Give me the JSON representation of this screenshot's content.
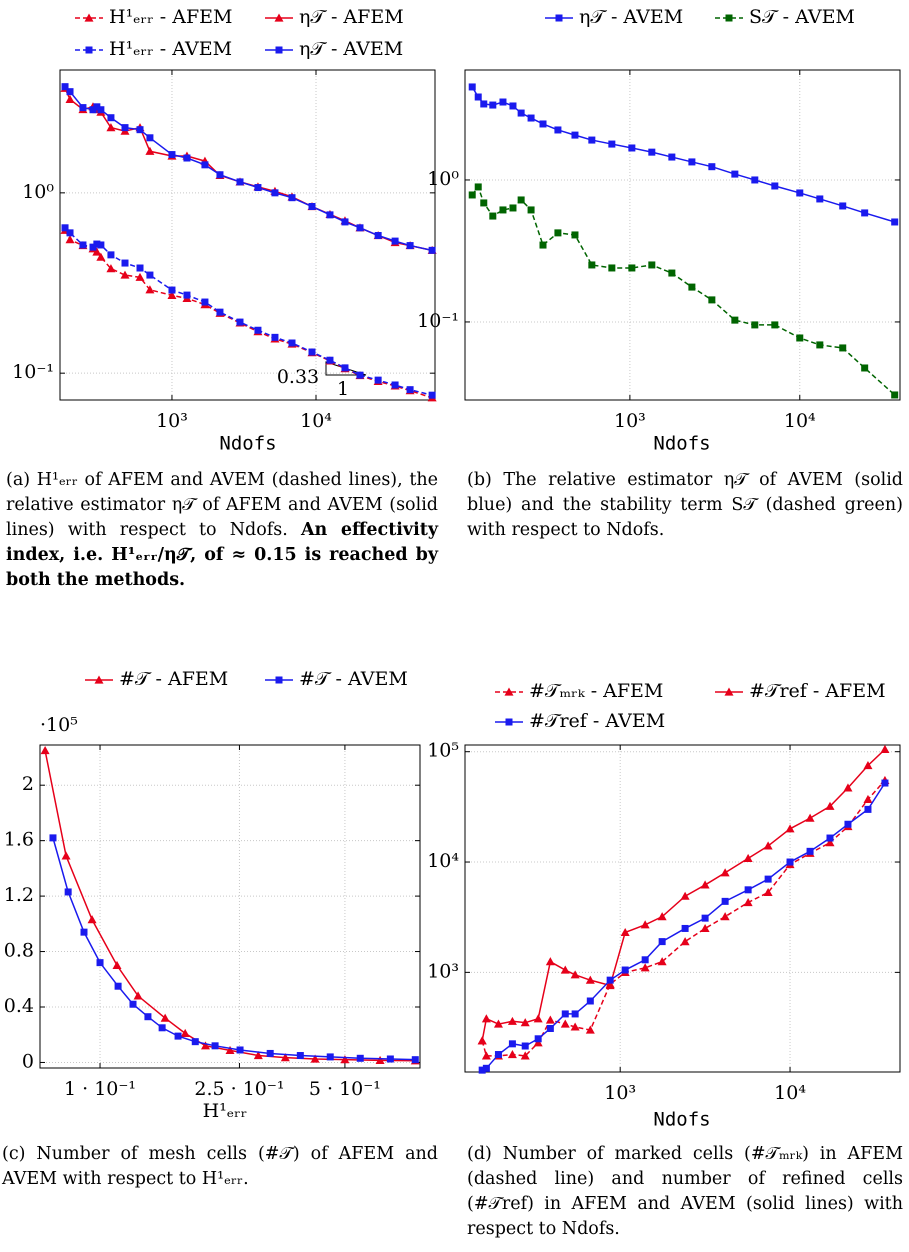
{
  "chart_data": [
    {
      "type": "line",
      "xlabel": "Ndofs",
      "xlog": true,
      "ylog": true,
      "grid": true,
      "xlim": [
        167,
        67000
      ],
      "ylim": [
        0.071,
        4.8
      ],
      "xticks": [
        {
          "value": 1000,
          "label": "10³"
        },
        {
          "value": 10000,
          "label": "10⁴"
        }
      ],
      "yticks": [
        {
          "value": 0.1,
          "label": "10⁻¹"
        },
        {
          "value": 1,
          "label": "10⁰"
        }
      ],
      "x": [
        181,
        196,
        241,
        283,
        301,
        321,
        377,
        472,
        600,
        703,
        1000,
        1271,
        1694,
        2154,
        2967,
        3953,
        5188,
        6813,
        9380,
        12500,
        15890,
        20200,
        27000,
        35400,
        45000,
        64000
      ],
      "series": [
        {
          "name": "H¹ₑᵣᵣ - AFEM",
          "color": "#e6001a",
          "marker": "triangle",
          "dashed": true,
          "values": [
            0.62,
            0.55,
            0.51,
            0.49,
            0.47,
            0.44,
            0.38,
            0.35,
            0.34,
            0.29,
            0.27,
            0.26,
            0.24,
            0.215,
            0.19,
            0.17,
            0.155,
            0.145,
            0.13,
            0.117,
            0.106,
            0.097,
            0.09,
            0.085,
            0.08,
            0.073
          ]
        },
        {
          "name": "η𝒯 - AFEM",
          "color": "#e6001a",
          "marker": "triangle",
          "dashed": false,
          "values": [
            3.8,
            3.3,
            2.9,
            3.0,
            2.9,
            2.8,
            2.3,
            2.2,
            2.3,
            1.7,
            1.6,
            1.6,
            1.5,
            1.25,
            1.15,
            1.08,
            1.02,
            0.95,
            0.84,
            0.76,
            0.7,
            0.64,
            0.58,
            0.53,
            0.51,
            0.48
          ]
        },
        {
          "name": "H¹ₑᵣᵣ - AVEM",
          "color": "#1a1aee",
          "marker": "square",
          "dashed": true,
          "values": [
            0.64,
            0.6,
            0.514,
            0.5,
            0.52,
            0.514,
            0.453,
            0.408,
            0.383,
            0.35,
            0.289,
            0.271,
            0.248,
            0.218,
            0.192,
            0.173,
            0.158,
            0.147,
            0.131,
            0.118,
            0.107,
            0.0975,
            0.0915,
            0.086,
            0.081,
            0.0755
          ]
        },
        {
          "name": "η𝒯 - AVEM",
          "color": "#1a1aee",
          "marker": "square",
          "dashed": false,
          "values": [
            3.88,
            3.64,
            2.97,
            2.89,
            3.0,
            2.89,
            2.61,
            2.3,
            2.24,
            2.02,
            1.63,
            1.56,
            1.43,
            1.26,
            1.15,
            1.07,
            1.0,
            0.94,
            0.84,
            0.755,
            0.69,
            0.64,
            0.58,
            0.54,
            0.51,
            0.48
          ]
        }
      ],
      "annotations": [
        "0.33",
        "1"
      ],
      "caption": "(a) H¹ₑᵣᵣ of AFEM and AVEM (dashed lines), the relative estimator η𝒯 of AFEM and AVEM (solid lines) with respect to Ndofs.",
      "caption_bold": "An effectivity index, i.e. H¹ₑᵣᵣ/η𝒯, of ≈ 0.15 is reached by both the methods."
    },
    {
      "type": "line",
      "xlabel": "Ndofs",
      "xlog": true,
      "ylog": true,
      "grid": true,
      "xlim": [
        107,
        38900
      ],
      "ylim": [
        0.0282,
        5.95
      ],
      "xticks": [
        {
          "value": 1000,
          "label": "10³"
        },
        {
          "value": 10000,
          "label": "10⁴"
        }
      ],
      "yticks": [
        {
          "value": 0.1,
          "label": "10⁻¹"
        },
        {
          "value": 1,
          "label": "10⁰"
        }
      ],
      "x": [
        118,
        128,
        138,
        156,
        179,
        205,
        229,
        262,
        308,
        377,
        475,
        597,
        783,
        1027,
        1346,
        1766,
        2317,
        3037,
        4148,
        5436,
        7130,
        10000,
        13120,
        17900,
        24100,
        36200
      ],
      "series": [
        {
          "name": "η𝒯 - AVEM",
          "color": "#1a1aee",
          "marker": "square",
          "dashed": false,
          "values": [
            4.52,
            3.84,
            3.43,
            3.37,
            3.54,
            3.32,
            2.96,
            2.73,
            2.48,
            2.25,
            2.07,
            1.91,
            1.79,
            1.68,
            1.57,
            1.45,
            1.34,
            1.24,
            1.1,
            1.0,
            0.907,
            0.81,
            0.735,
            0.656,
            0.586,
            0.506
          ]
        },
        {
          "name": "S𝒯 - AVEM",
          "color": "#006400",
          "marker": "square",
          "dashed": true,
          "values": [
            0.784,
            0.893,
            0.689,
            0.557,
            0.615,
            0.635,
            0.723,
            0.615,
            0.348,
            0.424,
            0.41,
            0.252,
            0.24,
            0.24,
            0.252,
            0.221,
            0.176,
            0.143,
            0.103,
            0.0953,
            0.0953,
            0.0771,
            0.0689,
            0.0656,
            0.0474,
            0.0306
          ]
        }
      ],
      "caption": "(b) The relative estimator η𝒯 of AVEM (solid blue) and the stability term S𝒯 (dashed green) with respect to Ndofs."
    },
    {
      "type": "line",
      "xlabel": "H¹ₑᵣᵣ",
      "xlog": true,
      "ylog": false,
      "grid": true,
      "y_multiplier": "·10⁵",
      "xlim": [
        0.0674,
        0.819
      ],
      "ylim": [
        -0.04,
        2.29
      ],
      "xticks": [
        {
          "value": 0.1,
          "label": "1 · 10⁻¹"
        },
        {
          "value": 0.25,
          "label": "2.5 · 10⁻¹"
        },
        {
          "value": 0.5,
          "label": "5 · 10⁻¹"
        }
      ],
      "yticks": [
        0,
        0.4,
        0.8,
        1.2,
        1.6,
        2
      ],
      "series": [
        {
          "name": "#𝒯 - AFEM",
          "color": "#e6001a",
          "marker": "triangle",
          "dashed": false,
          "x": [
            0.0697,
            0.08,
            0.0949,
            0.1118,
            0.1284,
            0.1534,
            0.175,
            0.2,
            0.235,
            0.283,
            0.338,
            0.411,
            0.5,
            0.63,
            0.794
          ],
          "values": [
            2.25,
            1.49,
            1.03,
            0.7,
            0.48,
            0.32,
            0.21,
            0.12,
            0.087,
            0.05,
            0.035,
            0.025,
            0.02,
            0.015,
            0.012
          ]
        },
        {
          "name": "#𝒯 - AVEM",
          "color": "#1a1aee",
          "marker": "square",
          "dashed": false,
          "x": [
            0.0734,
            0.0811,
            0.09,
            0.1,
            0.1126,
            0.1242,
            0.137,
            0.1504,
            0.167,
            0.187,
            0.213,
            0.251,
            0.306,
            0.373,
            0.454,
            0.553,
            0.674,
            0.794
          ],
          "values": [
            1.62,
            1.23,
            0.94,
            0.72,
            0.55,
            0.42,
            0.33,
            0.25,
            0.19,
            0.15,
            0.12,
            0.09,
            0.065,
            0.05,
            0.04,
            0.03,
            0.025,
            0.02
          ]
        }
      ],
      "caption": "(c) Number of mesh cells (#𝒯) of AFEM and AVEM with respect to H¹ₑᵣᵣ."
    },
    {
      "type": "line",
      "xlabel": "Ndofs",
      "xlog": true,
      "ylog": true,
      "grid": true,
      "xlim": [
        122,
        44400
      ],
      "ylim": [
        125,
        115000
      ],
      "xticks": [
        {
          "value": 1000,
          "label": "10³"
        },
        {
          "value": 10000,
          "label": "10⁴"
        }
      ],
      "yticks": [
        {
          "value": 1000,
          "label": "10³"
        },
        {
          "value": 10000,
          "label": "10⁴"
        },
        {
          "value": 100000,
          "label": "10⁵"
        }
      ],
      "x": [
        154,
        163,
        192,
        232,
        276,
        329,
        388,
        475,
        543,
        667,
        873,
        1070,
        1403,
        1766,
        2411,
        3162,
        4148,
        5666,
        7430,
        10000,
        13120,
        17190,
        21930,
        28760,
        36200
      ],
      "series": [
        {
          "name": "#𝒯ₘᵣₖ - AFEM",
          "color": "#e6001a",
          "marker": "triangle",
          "dashed": true,
          "values": [
            240,
            175,
            175,
            180,
            175,
            230,
            370,
            340,
            320,
            300,
            780,
            1000,
            1100,
            1250,
            1900,
            2500,
            3200,
            4300,
            5300,
            9500,
            12000,
            15000,
            21000,
            37000,
            55000
          ]
        },
        {
          "name": "#𝒯ref - AFEM",
          "color": "#e6001a",
          "marker": "triangle",
          "dashed": false,
          "values": [
            240,
            380,
            340,
            360,
            350,
            380,
            1250,
            1050,
            950,
            850,
            760,
            2300,
            2700,
            3200,
            4900,
            6200,
            8000,
            10800,
            14000,
            20000,
            25000,
            32000,
            47000,
            75000,
            105000
          ]
        },
        {
          "name": "#𝒯ref - AVEM",
          "color": "#1a1aee",
          "marker": "square",
          "dashed": false,
          "values": [
            130,
            135,
            180,
            225,
            215,
            250,
            310,
            420,
            420,
            550,
            850,
            1050,
            1300,
            1900,
            2500,
            3100,
            4400,
            5600,
            7000,
            10000,
            12500,
            16500,
            22000,
            30000,
            52000
          ]
        }
      ],
      "caption": "(d) Number of marked cells (#𝒯ₘᵣₖ) in AFEM (dashed line) and number of refined cells (#𝒯ref) in AFEM and AVEM (solid lines) with respect to Ndofs."
    }
  ]
}
